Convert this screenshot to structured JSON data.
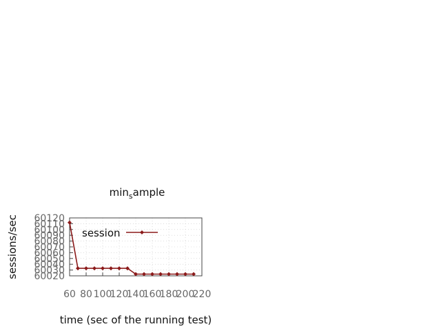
{
  "chart_data": {
    "type": "line",
    "title_base": "min",
    "title_sub": "s",
    "title_rest": "ample",
    "xlabel": "time (sec of the running test)",
    "ylabel": "sessions/sec",
    "xlim": [
      60,
      220
    ],
    "ylim": [
      60020,
      60120
    ],
    "x_ticks": [
      60,
      80,
      100,
      120,
      140,
      160,
      180,
      200,
      220
    ],
    "y_ticks": [
      60020,
      60030,
      60040,
      60050,
      60060,
      60070,
      60080,
      60090,
      60100,
      60110,
      60120
    ],
    "grid": true,
    "legend_position": "top-left",
    "series": [
      {
        "name": "session",
        "color": "#8b1a1a",
        "x": [
          60,
          70,
          80,
          90,
          100,
          110,
          120,
          130,
          140,
          150,
          160,
          170,
          180,
          190,
          200,
          210
        ],
        "y": [
          60112,
          60033,
          60033,
          60033,
          60033,
          60033,
          60033,
          60033,
          60023,
          60023,
          60023,
          60023,
          60023,
          60023,
          60023,
          60023
        ]
      }
    ]
  }
}
